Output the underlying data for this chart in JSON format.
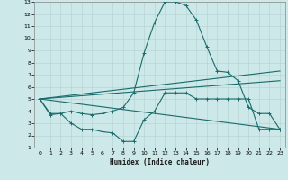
{
  "xlabel": "Humidex (Indice chaleur)",
  "xlim": [
    -0.5,
    23.5
  ],
  "ylim": [
    1,
    13
  ],
  "xticks": [
    0,
    1,
    2,
    3,
    4,
    5,
    6,
    7,
    8,
    9,
    10,
    11,
    12,
    13,
    14,
    15,
    16,
    17,
    18,
    19,
    20,
    21,
    22,
    23
  ],
  "yticks": [
    1,
    2,
    3,
    4,
    5,
    6,
    7,
    8,
    9,
    10,
    11,
    12,
    13
  ],
  "bg_color": "#cce8e8",
  "line_color": "#1a6b6b",
  "grid_color": "#b8d4d4",
  "line1_x": [
    0,
    1,
    2,
    3,
    4,
    5,
    6,
    7,
    8,
    9,
    10,
    11,
    12,
    13,
    14,
    15,
    16,
    17,
    18,
    19,
    20,
    21,
    22,
    23
  ],
  "line1_y": [
    5.0,
    3.7,
    3.8,
    4.0,
    3.8,
    3.7,
    3.8,
    4.0,
    4.3,
    5.5,
    8.8,
    11.3,
    13.0,
    13.0,
    12.7,
    11.5,
    9.3,
    7.3,
    7.2,
    6.5,
    4.3,
    3.8,
    3.8,
    2.5
  ],
  "line2_x": [
    0,
    1,
    2,
    3,
    4,
    5,
    6,
    7,
    8,
    9,
    10,
    11,
    12,
    13,
    14,
    15,
    16,
    17,
    18,
    19,
    20,
    21,
    22,
    23
  ],
  "line2_y": [
    5.0,
    3.8,
    3.8,
    3.0,
    2.5,
    2.5,
    2.3,
    2.2,
    1.5,
    1.5,
    3.3,
    4.0,
    5.5,
    5.5,
    5.5,
    5.0,
    5.0,
    5.0,
    5.0,
    5.0,
    5.0,
    2.5,
    2.5,
    2.5
  ],
  "line3_x": [
    0,
    23
  ],
  "line3_y": [
    5.0,
    7.3
  ],
  "line4_x": [
    0,
    23
  ],
  "line4_y": [
    5.0,
    6.5
  ],
  "line5_x": [
    0,
    23
  ],
  "line5_y": [
    5.0,
    2.5
  ]
}
